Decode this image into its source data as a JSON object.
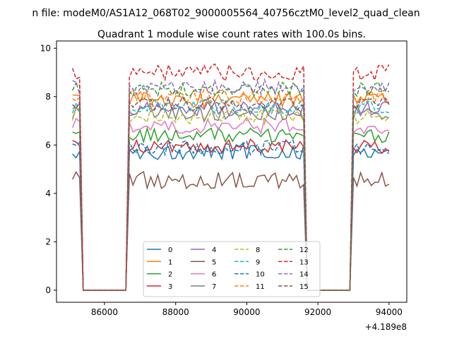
{
  "suptitle": "n file: modeM0/AS1A12_068T02_9000005564_40756cztM0_level2_quad_clean",
  "chart_data": {
    "type": "line",
    "title": "Quadrant 1 module wise count rates with 100.0s bins.",
    "xlabel": "",
    "ylabel": "",
    "x_offset_label": "+4.189e8",
    "xlim": [
      84650,
      94500
    ],
    "ylim": [
      -0.5,
      10.3
    ],
    "xticks": [
      86000,
      88000,
      90000,
      92000,
      94000
    ],
    "xtick_labels": [
      "86000",
      "88000",
      "90000",
      "92000",
      "94000"
    ],
    "yticks": [
      0,
      2,
      4,
      6,
      8,
      10
    ],
    "ytick_labels": [
      "0",
      "2",
      "4",
      "6",
      "8",
      "10"
    ],
    "grid": false,
    "legend_placement": "lower-center",
    "segments": [
      {
        "x0": 85100,
        "x1": 85300,
        "up": true
      },
      {
        "x0": 85400,
        "x1": 86600,
        "up": false
      },
      {
        "x0": 86700,
        "x1": 91600,
        "up": true
      },
      {
        "x0": 91700,
        "x1": 92900,
        "up": false
      },
      {
        "x0": 93000,
        "x1": 94000,
        "up": true
      }
    ],
    "series": [
      {
        "name": "0",
        "color": "#1f77b4",
        "dash": "solid",
        "level": 5.75,
        "amplitude": 0.35
      },
      {
        "name": "1",
        "color": "#ff7f0e",
        "dash": "solid",
        "level": 7.85,
        "amplitude": 0.35
      },
      {
        "name": "2",
        "color": "#2ca02c",
        "dash": "solid",
        "level": 6.4,
        "amplitude": 0.3
      },
      {
        "name": "3",
        "color": "#d62728",
        "dash": "solid",
        "level": 5.95,
        "amplitude": 0.3
      },
      {
        "name": "4",
        "color": "#9467bd",
        "dash": "solid",
        "level": 7.5,
        "amplitude": 0.3
      },
      {
        "name": "5",
        "color": "#8c564b",
        "dash": "solid",
        "level": 4.55,
        "amplitude": 0.35
      },
      {
        "name": "6",
        "color": "#e377c2",
        "dash": "solid",
        "level": 6.8,
        "amplitude": 0.35
      },
      {
        "name": "7",
        "color": "#7f7f7f",
        "dash": "solid",
        "level": 7.3,
        "amplitude": 0.35
      },
      {
        "name": "8",
        "color": "#bcbd22",
        "dash": "dashed",
        "level": 7.2,
        "amplitude": 0.35
      },
      {
        "name": "9",
        "color": "#17becf",
        "dash": "dashed",
        "level": 7.6,
        "amplitude": 0.3
      },
      {
        "name": "10",
        "color": "#1f77b4",
        "dash": "dashed",
        "level": 5.9,
        "amplitude": 0.3
      },
      {
        "name": "11",
        "color": "#ff7f0e",
        "dash": "dashed",
        "level": 8.0,
        "amplitude": 0.3
      },
      {
        "name": "12",
        "color": "#2ca02c",
        "dash": "dashed",
        "level": 8.3,
        "amplitude": 0.3
      },
      {
        "name": "13",
        "color": "#d62728",
        "dash": "dashed",
        "level": 9.0,
        "amplitude": 0.35
      },
      {
        "name": "14",
        "color": "#9467bd",
        "dash": "dashed",
        "level": 8.4,
        "amplitude": 0.3
      },
      {
        "name": "15",
        "color": "#8c564b",
        "dash": "dashed",
        "level": 7.7,
        "amplitude": 0.3
      }
    ]
  }
}
